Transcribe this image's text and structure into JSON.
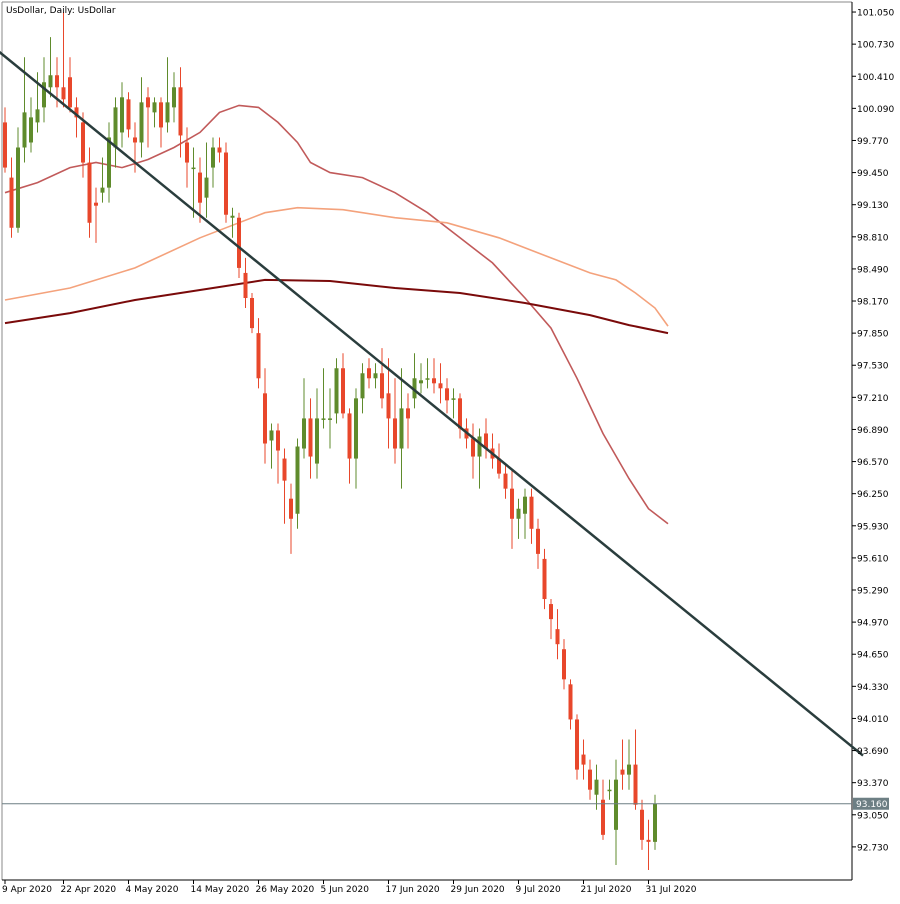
{
  "chart_data": {
    "type": "candlestick",
    "title": "UsDollar, Daily:  UsDollar",
    "ylim": [
      92.4,
      101.15
    ],
    "y_ticks": [
      "101.050",
      "100.730",
      "100.410",
      "100.090",
      "99.770",
      "99.450",
      "99.130",
      "98.810",
      "98.490",
      "98.170",
      "97.850",
      "97.530",
      "97.210",
      "96.890",
      "96.570",
      "96.250",
      "95.930",
      "95.610",
      "95.290",
      "94.970",
      "94.650",
      "94.330",
      "94.010",
      "93.690",
      "93.370",
      "93.050",
      "92.730"
    ],
    "x_ticks": [
      {
        "label": "9 Apr 2020",
        "index": 0
      },
      {
        "label": "22 Apr 2020",
        "index": 9
      },
      {
        "label": "4 May 2020",
        "index": 19
      },
      {
        "label": "14 May 2020",
        "index": 29
      },
      {
        "label": "26 May 2020",
        "index": 39
      },
      {
        "label": "5 Jun 2020",
        "index": 49
      },
      {
        "label": "17 Jun 2020",
        "index": 59
      },
      {
        "label": "29 Jun 2020",
        "index": 69
      },
      {
        "label": "9 Jul 2020",
        "index": 79
      },
      {
        "label": "21 Jul 2020",
        "index": 89
      },
      {
        "label": "31 Jul 2020",
        "index": 99
      }
    ],
    "current_price": "93.160",
    "candles": [
      {
        "o": 99.95,
        "h": 100.1,
        "l": 99.45,
        "c": 99.5
      },
      {
        "o": 99.4,
        "h": 99.6,
        "l": 98.8,
        "c": 98.9
      },
      {
        "o": 98.9,
        "h": 99.9,
        "l": 98.85,
        "c": 99.7
      },
      {
        "o": 99.7,
        "h": 100.6,
        "l": 99.55,
        "c": 100.05
      },
      {
        "o": 99.75,
        "h": 100.2,
        "l": 99.65,
        "c": 100.0
      },
      {
        "o": 99.95,
        "h": 100.45,
        "l": 99.85,
        "c": 100.08
      },
      {
        "o": 100.1,
        "h": 100.6,
        "l": 99.95,
        "c": 100.35
      },
      {
        "o": 100.3,
        "h": 100.8,
        "l": 100.2,
        "c": 100.42
      },
      {
        "o": 100.42,
        "h": 100.6,
        "l": 100.1,
        "c": 100.3
      },
      {
        "o": 100.3,
        "h": 101.05,
        "l": 100.1,
        "c": 100.18
      },
      {
        "o": 100.4,
        "h": 100.6,
        "l": 100.05,
        "c": 100.1
      },
      {
        "o": 100.1,
        "h": 100.2,
        "l": 99.8,
        "c": 100.0
      },
      {
        "o": 99.95,
        "h": 100.05,
        "l": 99.4,
        "c": 99.55
      },
      {
        "o": 99.55,
        "h": 99.7,
        "l": 98.8,
        "c": 98.95
      },
      {
        "o": 99.15,
        "h": 99.3,
        "l": 98.75,
        "c": 99.12
      },
      {
        "o": 99.25,
        "h": 99.6,
        "l": 99.15,
        "c": 99.3
      },
      {
        "o": 99.3,
        "h": 99.95,
        "l": 99.15,
        "c": 99.8
      },
      {
        "o": 99.7,
        "h": 100.2,
        "l": 99.5,
        "c": 100.1
      },
      {
        "o": 99.85,
        "h": 100.35,
        "l": 99.7,
        "c": 100.2
      },
      {
        "o": 100.18,
        "h": 100.25,
        "l": 99.8,
        "c": 99.88
      },
      {
        "o": 99.8,
        "h": 99.95,
        "l": 99.45,
        "c": 99.75
      },
      {
        "o": 99.75,
        "h": 100.4,
        "l": 99.6,
        "c": 100.15
      },
      {
        "o": 100.2,
        "h": 100.3,
        "l": 99.7,
        "c": 100.1
      },
      {
        "o": 100.05,
        "h": 100.2,
        "l": 99.9,
        "c": 100.15
      },
      {
        "o": 100.15,
        "h": 100.2,
        "l": 99.7,
        "c": 99.9
      },
      {
        "o": 99.95,
        "h": 100.6,
        "l": 99.85,
        "c": 100.15
      },
      {
        "o": 100.1,
        "h": 100.45,
        "l": 99.95,
        "c": 100.3
      },
      {
        "o": 100.3,
        "h": 100.5,
        "l": 99.6,
        "c": 99.82
      },
      {
        "o": 99.75,
        "h": 99.9,
        "l": 99.3,
        "c": 99.55
      },
      {
        "o": 99.5,
        "h": 99.7,
        "l": 99.0,
        "c": 99.5
      },
      {
        "o": 99.45,
        "h": 99.6,
        "l": 98.95,
        "c": 99.15
      },
      {
        "o": 99.2,
        "h": 99.75,
        "l": 99.0,
        "c": 99.4
      },
      {
        "o": 99.5,
        "h": 99.8,
        "l": 99.3,
        "c": 99.7
      },
      {
        "o": 99.7,
        "h": 99.8,
        "l": 99.55,
        "c": 99.65
      },
      {
        "o": 99.65,
        "h": 99.75,
        "l": 98.95,
        "c": 99.03
      },
      {
        "o": 99.0,
        "h": 99.1,
        "l": 98.8,
        "c": 99.02
      },
      {
        "o": 99.0,
        "h": 99.05,
        "l": 98.4,
        "c": 98.5
      },
      {
        "o": 98.45,
        "h": 98.6,
        "l": 98.1,
        "c": 98.2
      },
      {
        "o": 98.2,
        "h": 98.25,
        "l": 97.85,
        "c": 97.9
      },
      {
        "o": 97.85,
        "h": 98.0,
        "l": 97.3,
        "c": 97.4
      },
      {
        "o": 97.25,
        "h": 97.5,
        "l": 96.55,
        "c": 96.75
      },
      {
        "o": 96.78,
        "h": 96.95,
        "l": 96.5,
        "c": 96.88
      },
      {
        "o": 96.88,
        "h": 96.95,
        "l": 96.35,
        "c": 96.68
      },
      {
        "o": 96.6,
        "h": 96.7,
        "l": 95.95,
        "c": 96.38
      },
      {
        "o": 96.2,
        "h": 96.35,
        "l": 95.65,
        "c": 96.0
      },
      {
        "o": 96.05,
        "h": 96.8,
        "l": 95.9,
        "c": 96.72
      },
      {
        "o": 96.7,
        "h": 97.4,
        "l": 96.6,
        "c": 97.0
      },
      {
        "o": 97.0,
        "h": 97.2,
        "l": 96.4,
        "c": 96.62
      },
      {
        "o": 96.55,
        "h": 97.3,
        "l": 96.4,
        "c": 97.0
      },
      {
        "o": 97.0,
        "h": 97.5,
        "l": 96.9,
        "c": 97.0
      },
      {
        "o": 97.0,
        "h": 97.3,
        "l": 96.7,
        "c": 97.0
      },
      {
        "o": 97.05,
        "h": 97.6,
        "l": 96.95,
        "c": 97.5
      },
      {
        "o": 97.5,
        "h": 97.65,
        "l": 97.0,
        "c": 97.05
      },
      {
        "o": 97.05,
        "h": 97.1,
        "l": 96.35,
        "c": 96.6
      },
      {
        "o": 96.6,
        "h": 97.3,
        "l": 96.3,
        "c": 97.2
      },
      {
        "o": 97.2,
        "h": 97.55,
        "l": 97.05,
        "c": 97.45
      },
      {
        "o": 97.5,
        "h": 97.6,
        "l": 97.3,
        "c": 97.4
      },
      {
        "o": 97.4,
        "h": 97.55,
        "l": 97.3,
        "c": 97.45
      },
      {
        "o": 97.45,
        "h": 97.7,
        "l": 97.1,
        "c": 97.2
      },
      {
        "o": 97.25,
        "h": 97.6,
        "l": 96.7,
        "c": 97.0
      },
      {
        "o": 97.0,
        "h": 97.4,
        "l": 96.55,
        "c": 96.7
      },
      {
        "o": 96.7,
        "h": 97.5,
        "l": 96.3,
        "c": 97.1
      },
      {
        "o": 97.1,
        "h": 97.25,
        "l": 96.7,
        "c": 97.0
      },
      {
        "o": 97.2,
        "h": 97.65,
        "l": 97.1,
        "c": 97.4
      },
      {
        "o": 97.35,
        "h": 97.55,
        "l": 97.25,
        "c": 97.38
      },
      {
        "o": 97.4,
        "h": 97.6,
        "l": 97.3,
        "c": 97.4
      },
      {
        "o": 97.4,
        "h": 97.6,
        "l": 97.25,
        "c": 97.35
      },
      {
        "o": 97.35,
        "h": 97.55,
        "l": 97.15,
        "c": 97.3
      },
      {
        "o": 97.3,
        "h": 97.4,
        "l": 97.05,
        "c": 97.18
      },
      {
        "o": 97.2,
        "h": 97.3,
        "l": 97.0,
        "c": 97.2
      },
      {
        "o": 97.2,
        "h": 97.25,
        "l": 96.8,
        "c": 96.9
      },
      {
        "o": 96.9,
        "h": 97.0,
        "l": 96.7,
        "c": 96.8
      },
      {
        "o": 96.8,
        "h": 96.95,
        "l": 96.4,
        "c": 96.62
      },
      {
        "o": 96.62,
        "h": 96.9,
        "l": 96.3,
        "c": 96.82
      },
      {
        "o": 96.85,
        "h": 97.0,
        "l": 96.6,
        "c": 96.7
      },
      {
        "o": 96.7,
        "h": 96.85,
        "l": 96.5,
        "c": 96.6
      },
      {
        "o": 96.6,
        "h": 96.75,
        "l": 96.4,
        "c": 96.45
      },
      {
        "o": 96.45,
        "h": 96.55,
        "l": 96.2,
        "c": 96.3
      },
      {
        "o": 96.3,
        "h": 96.5,
        "l": 95.7,
        "c": 96.0
      },
      {
        "o": 96.0,
        "h": 96.2,
        "l": 95.8,
        "c": 96.1
      },
      {
        "o": 96.05,
        "h": 96.3,
        "l": 95.8,
        "c": 96.22
      },
      {
        "o": 96.22,
        "h": 96.3,
        "l": 95.75,
        "c": 95.9
      },
      {
        "o": 95.9,
        "h": 96.0,
        "l": 95.5,
        "c": 95.65
      },
      {
        "o": 95.6,
        "h": 95.7,
        "l": 95.1,
        "c": 95.2
      },
      {
        "o": 95.15,
        "h": 95.2,
        "l": 94.8,
        "c": 95.0
      },
      {
        "o": 94.9,
        "h": 95.1,
        "l": 94.6,
        "c": 94.75
      },
      {
        "o": 94.7,
        "h": 94.8,
        "l": 94.3,
        "c": 94.4
      },
      {
        "o": 94.35,
        "h": 94.4,
        "l": 93.9,
        "c": 94.0
      },
      {
        "o": 94.0,
        "h": 94.05,
        "l": 93.4,
        "c": 93.5
      },
      {
        "o": 93.65,
        "h": 93.8,
        "l": 93.4,
        "c": 93.55
      },
      {
        "o": 93.5,
        "h": 93.6,
        "l": 93.2,
        "c": 93.3
      },
      {
        "o": 93.25,
        "h": 93.55,
        "l": 93.1,
        "c": 93.4
      },
      {
        "o": 93.2,
        "h": 93.4,
        "l": 92.8,
        "c": 92.85
      },
      {
        "o": 93.3,
        "h": 93.4,
        "l": 93.2,
        "c": 93.3
      },
      {
        "o": 92.9,
        "h": 93.6,
        "l": 92.55,
        "c": 93.4
      },
      {
        "o": 93.5,
        "h": 93.8,
        "l": 93.3,
        "c": 93.45
      },
      {
        "o": 93.45,
        "h": 93.8,
        "l": 93.3,
        "c": 93.55
      },
      {
        "o": 93.55,
        "h": 93.9,
        "l": 93.1,
        "c": 93.15
      },
      {
        "o": 93.1,
        "h": 93.2,
        "l": 92.7,
        "c": 92.8
      },
      {
        "o": 92.8,
        "h": 93.0,
        "l": 92.5,
        "c": 92.78
      },
      {
        "o": 92.78,
        "h": 93.25,
        "l": 92.7,
        "c": 93.16
      }
    ],
    "trend_line": {
      "x1": -10.3,
      "y1": 101.15,
      "x2": 132,
      "y2": 93.64
    },
    "series": [
      {
        "line": "fast-ma",
        "color": "#c15a5a",
        "values": [
          [
            0,
            99.25
          ],
          [
            5,
            99.35
          ],
          [
            10,
            99.5
          ],
          [
            14,
            99.55
          ],
          [
            18,
            99.5
          ],
          [
            22,
            99.58
          ],
          [
            26,
            99.7
          ],
          [
            30,
            99.85
          ],
          [
            33,
            100.05
          ],
          [
            36,
            100.12
          ],
          [
            39,
            100.1
          ],
          [
            42,
            99.95
          ],
          [
            45,
            99.75
          ],
          [
            47,
            99.55
          ],
          [
            50,
            99.45
          ],
          [
            55,
            99.4
          ],
          [
            60,
            99.25
          ],
          [
            65,
            99.05
          ],
          [
            70,
            98.8
          ],
          [
            75,
            98.55
          ],
          [
            80,
            98.2
          ],
          [
            84,
            97.9
          ],
          [
            88,
            97.4
          ],
          [
            92,
            96.85
          ],
          [
            96,
            96.4
          ],
          [
            99,
            96.1
          ],
          [
            102,
            95.95
          ]
        ]
      },
      {
        "line": "mid-ma",
        "color": "#f4a27c",
        "values": [
          [
            0,
            98.18
          ],
          [
            10,
            98.3
          ],
          [
            20,
            98.5
          ],
          [
            30,
            98.8
          ],
          [
            40,
            99.05
          ],
          [
            45,
            99.1
          ],
          [
            52,
            99.08
          ],
          [
            60,
            99.0
          ],
          [
            68,
            98.95
          ],
          [
            76,
            98.8
          ],
          [
            84,
            98.6
          ],
          [
            90,
            98.45
          ],
          [
            94,
            98.38
          ],
          [
            97,
            98.25
          ],
          [
            100,
            98.1
          ],
          [
            102,
            97.92
          ]
        ]
      },
      {
        "line": "slow-ma",
        "color": "#7a0a0a",
        "values": [
          [
            0,
            97.95
          ],
          [
            10,
            98.05
          ],
          [
            20,
            98.18
          ],
          [
            30,
            98.28
          ],
          [
            40,
            98.38
          ],
          [
            50,
            98.37
          ],
          [
            60,
            98.3
          ],
          [
            70,
            98.25
          ],
          [
            80,
            98.15
          ],
          [
            90,
            98.03
          ],
          [
            96,
            97.93
          ],
          [
            102,
            97.85
          ]
        ]
      }
    ],
    "colors": {
      "bull": "#5f8b2c",
      "bear": "#e8472b",
      "trend": "#2a3d3d",
      "grid_axis": "#888888",
      "price_line": "#6d7f84",
      "price_label_bg": "#6d7f84"
    }
  }
}
